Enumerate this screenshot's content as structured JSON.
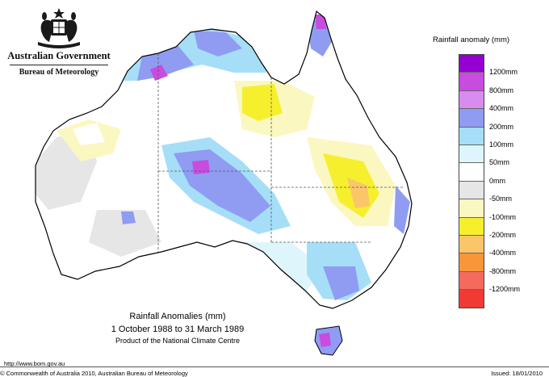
{
  "branding": {
    "government": "Australian Government",
    "bureau": "Bureau of Meteorology"
  },
  "legend": {
    "title": "Rainfall anomaly (mm)",
    "items": [
      {
        "label": "1200mm",
        "color": "#9400d3"
      },
      {
        "label": "800mm",
        "color": "#c84ce0"
      },
      {
        "label": "400mm",
        "color": "#d88cf0"
      },
      {
        "label": "200mm",
        "color": "#8f9cf2"
      },
      {
        "label": "100mm",
        "color": "#a6def8"
      },
      {
        "label": "50mm",
        "color": "#def6fb"
      },
      {
        "label": "0mm",
        "color": "#ffffff"
      },
      {
        "label": "-50mm",
        "color": "#e6e6e6"
      },
      {
        "label": "-100mm",
        "color": "#fbf7c0"
      },
      {
        "label": "-200mm",
        "color": "#f6ef2e"
      },
      {
        "label": "-400mm",
        "color": "#fbc56a"
      },
      {
        "label": "-800mm",
        "color": "#f9963a"
      },
      {
        "label": "-1200mm",
        "color": "#f66a5e"
      },
      {
        "label": "",
        "color": "#f23a34"
      }
    ]
  },
  "caption": {
    "title": "Rainfall Anomalies (mm)",
    "period": "1 October 1988 to 31 March 1989",
    "product": "Product of the National Climate Centre"
  },
  "footer": {
    "url": "http://www.bom.gov.au",
    "copyright": "© Commonwealth of Australia 2010, Australian Bureau of Meteorology",
    "issued": "Issued: 18/01/2010"
  }
}
